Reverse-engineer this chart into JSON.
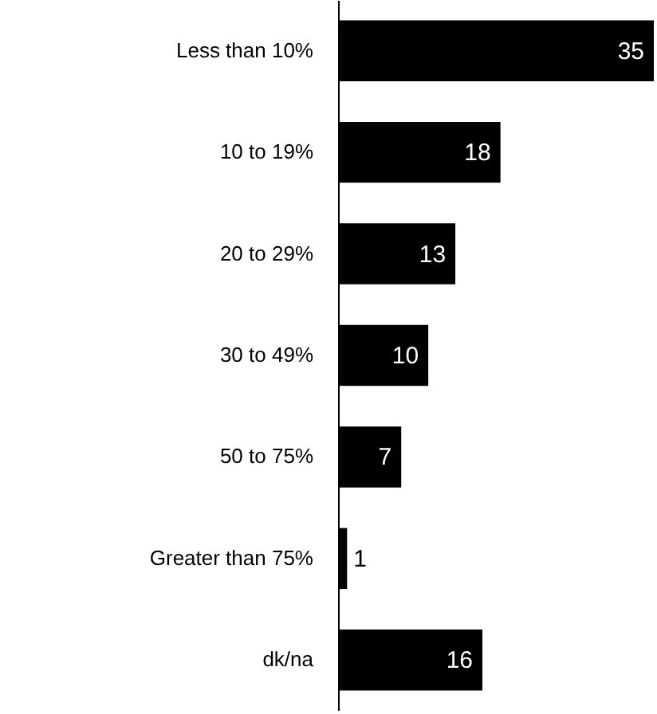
{
  "chart_data": {
    "type": "bar",
    "orientation": "horizontal",
    "data_labels": true,
    "color": "#000000",
    "categories": [
      "Less than 10%",
      "10 to 19%",
      "20 to 29%",
      "30 to 49%",
      "50 to 75%",
      "Greater than 75%",
      "dk/na"
    ],
    "values": [
      35,
      18,
      13,
      10,
      7,
      1,
      16
    ]
  }
}
